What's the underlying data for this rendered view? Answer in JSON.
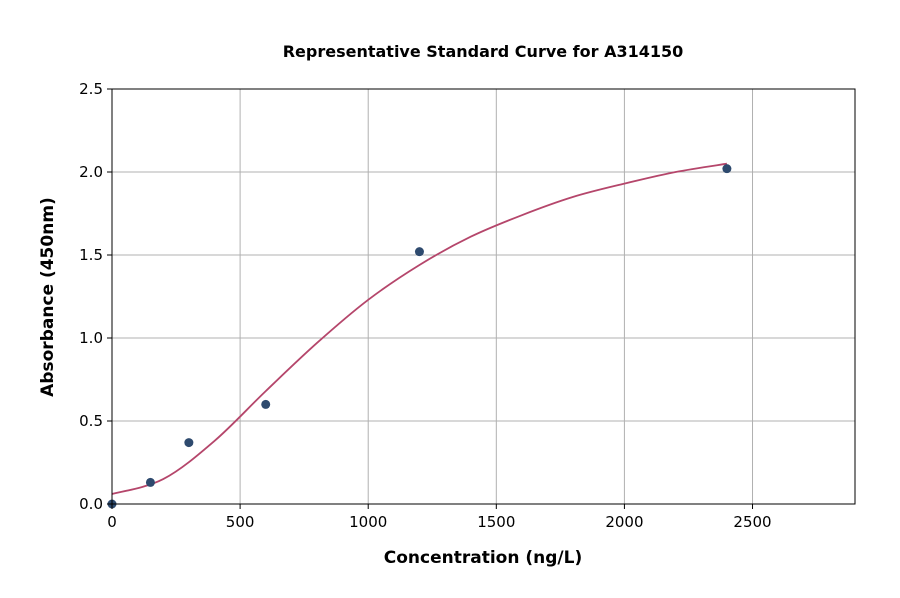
{
  "chart_data": {
    "type": "scatter",
    "title": "Representative Standard Curve for A314150",
    "xlabel": "Concentration (ng/L)",
    "ylabel": "Absorbance (450nm)",
    "xlim": [
      0,
      2900
    ],
    "ylim": [
      0,
      2.5
    ],
    "xticks": [
      0,
      500,
      1000,
      1500,
      2000,
      2500
    ],
    "yticks": [
      0.0,
      0.5,
      1.0,
      1.5,
      2.0,
      2.5
    ],
    "xtick_labels": [
      "0",
      "500",
      "1000",
      "1500",
      "2000",
      "2500"
    ],
    "ytick_labels": [
      "0.0",
      "0.5",
      "1.0",
      "1.5",
      "2.0",
      "2.5"
    ],
    "grid": true,
    "points": {
      "x": [
        0,
        150,
        300,
        600,
        1200,
        2400
      ],
      "y": [
        0.0,
        0.13,
        0.37,
        0.6,
        1.52,
        2.02
      ],
      "color": "#2e4a6e"
    },
    "fit_curve": {
      "x": [
        0,
        200,
        400,
        600,
        800,
        1000,
        1200,
        1400,
        1600,
        1800,
        2000,
        2200,
        2400
      ],
      "y": [
        0.06,
        0.15,
        0.38,
        0.68,
        0.97,
        1.23,
        1.44,
        1.61,
        1.74,
        1.85,
        1.93,
        2.0,
        2.05
      ],
      "color": "#b5466b"
    }
  }
}
